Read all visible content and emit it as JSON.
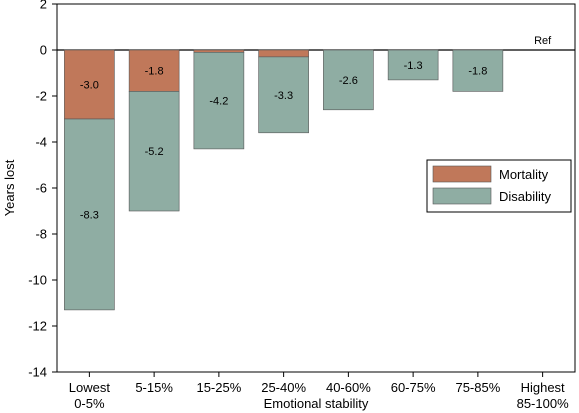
{
  "chart_data": {
    "type": "bar",
    "stacked": true,
    "title": "",
    "xlabel": "Emotional stability",
    "ylabel": "Years lost",
    "ylim": [
      -14,
      2
    ],
    "yticks": [
      2,
      0,
      -2,
      -4,
      -6,
      -8,
      -10,
      -12,
      -14
    ],
    "categories": [
      [
        "Lowest",
        "0-5%"
      ],
      [
        "5-15%"
      ],
      [
        "15-25%"
      ],
      [
        "25-40%"
      ],
      [
        "40-60%"
      ],
      [
        "60-75%"
      ],
      [
        "75-85%"
      ],
      [
        "Highest",
        "85-100%"
      ]
    ],
    "series": [
      {
        "name": "Mortality",
        "color": "#c0785a",
        "values": [
          -3.0,
          -1.8,
          -0.1,
          -0.3,
          null,
          null,
          null,
          null
        ],
        "labels": [
          "-3.0",
          "-1.8",
          "",
          "",
          "",
          "",
          "",
          ""
        ]
      },
      {
        "name": "Disability",
        "color": "#8fada3",
        "values": [
          -8.3,
          -5.2,
          -4.2,
          -3.3,
          -2.6,
          -1.3,
          -1.8,
          null
        ],
        "labels": [
          "-8.3",
          "-5.2",
          "-4.2",
          "-3.3",
          "-2.6",
          "-1.3",
          "-1.8",
          ""
        ]
      }
    ],
    "reference_label": "Ref",
    "reference_category_index": 7,
    "legend": {
      "placement": "right",
      "entries": [
        "Mortality",
        "Disability"
      ]
    },
    "grid": false
  }
}
